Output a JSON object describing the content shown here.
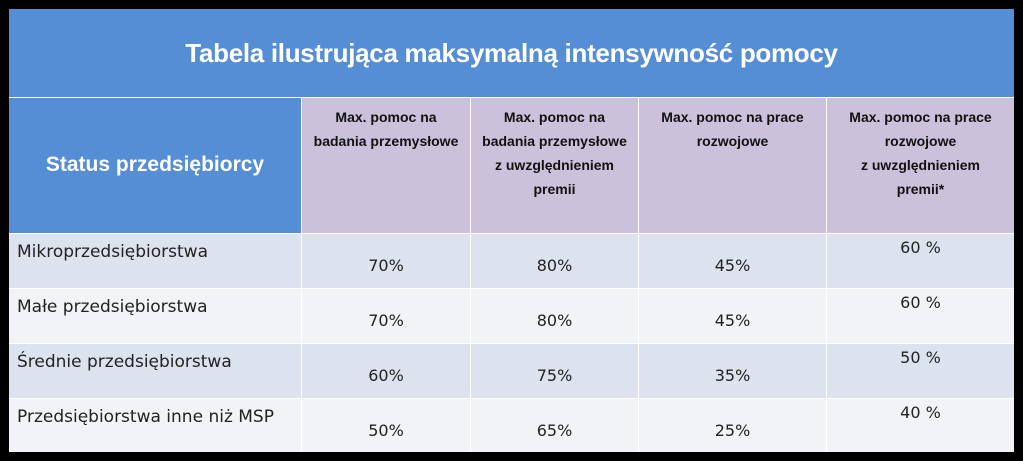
{
  "title": "Tabela ilustrująca maksymalną intensywność pomocy",
  "headers": {
    "status": "Status przedsiębiorcy",
    "columns": [
      "Max. pomoc na\nbadania przemysłowe",
      "Max. pomoc na\nbadania przemysłowe\nz uwzględnieniem\npremii",
      "Max. pomoc na prace\nrozwojowe",
      "Max. pomoc na prace\nrozwojowe\nz uwzględnieniem\npremii*"
    ]
  },
  "rows": [
    {
      "status": "Mikroprzedsiębiorstwa",
      "values": [
        "70%",
        "80%",
        "45%",
        "60 %"
      ]
    },
    {
      "status": "Małe przedsiębiorstwa",
      "values": [
        "70%",
        "80%",
        "45%",
        "60 %"
      ]
    },
    {
      "status": "Średnie przedsiębiorstwa",
      "values": [
        "60%",
        "75%",
        "35%",
        "50 %"
      ]
    },
    {
      "status": "Przedsiębiorstwa inne niż MSP",
      "values": [
        "50%",
        "65%",
        "25%",
        "40 %"
      ]
    }
  ],
  "colors": {
    "header_blue": "#558ed5",
    "header_purple": "#ccc1da",
    "row_even": "#dce3ee",
    "row_odd": "#f1f3f7"
  }
}
